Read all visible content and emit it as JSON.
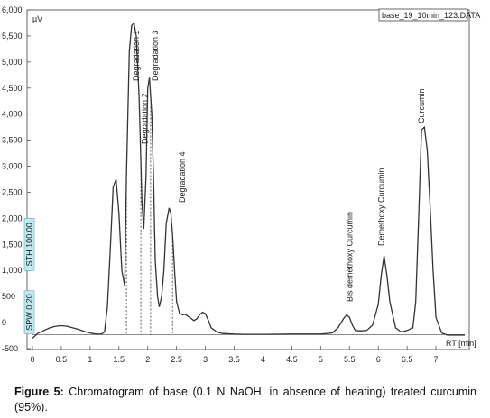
{
  "chart_data": {
    "type": "line",
    "y_unit": "µV",
    "x_unit": "RT [min]",
    "file_label": "base_19_10min_123.DATA",
    "xlim": [
      0,
      7.5
    ],
    "ylim": [
      -500,
      6000
    ],
    "x_ticks": [
      "0",
      "0.5",
      "1",
      "1.5",
      "2",
      "2.5",
      "3",
      "3.5",
      "4",
      "4.5",
      "5",
      "5.5",
      "6",
      "6.5",
      "7"
    ],
    "x_tick_values": [
      0,
      0.5,
      1,
      1.5,
      2,
      2.5,
      3,
      3.5,
      4,
      4.5,
      5,
      5.5,
      6,
      6.5,
      7
    ],
    "y_ticks": [
      "-500",
      "0",
      "500",
      "1,000",
      "1,500",
      "2,000",
      "2,500",
      "3,000",
      "3,500",
      "4,000",
      "4,500",
      "5,000",
      "5,500",
      "6,000"
    ],
    "y_tick_values": [
      -500,
      0,
      500,
      1000,
      1500,
      2000,
      2500,
      3000,
      3500,
      4000,
      4500,
      5000,
      5500,
      6000
    ],
    "baseline": -230,
    "series": [
      {
        "x": [
          0,
          0.1,
          0.2,
          0.3,
          0.4,
          0.5,
          0.6,
          0.7,
          0.8,
          0.9,
          1.0,
          1.1,
          1.2,
          1.25,
          1.3,
          1.35,
          1.4,
          1.45,
          1.5,
          1.55,
          1.6,
          1.63,
          1.68,
          1.72,
          1.76,
          1.8,
          1.85,
          1.9,
          1.93,
          1.97,
          2.0,
          2.03,
          2.07,
          2.1,
          2.13,
          2.17,
          2.2,
          2.24,
          2.28,
          2.32,
          2.37,
          2.4,
          2.43,
          2.47,
          2.5,
          2.55,
          2.6,
          2.65,
          2.7,
          2.75,
          2.8,
          2.85,
          2.9,
          2.95,
          3.0,
          3.05,
          3.1,
          3.2,
          3.3,
          3.5,
          3.7,
          4.0,
          4.5,
          5.0,
          5.2,
          5.3,
          5.4,
          5.45,
          5.5,
          5.55,
          5.6,
          5.7,
          5.8,
          5.9,
          6.0,
          6.05,
          6.1,
          6.15,
          6.2,
          6.3,
          6.4,
          6.5,
          6.6,
          6.65,
          6.7,
          6.75,
          6.8,
          6.85,
          6.9,
          6.95,
          7.0,
          7.1,
          7.2,
          7.3,
          7.4,
          7.5
        ],
        "y": [
          -300,
          -200,
          -150,
          -100,
          -70,
          -60,
          -70,
          -100,
          -130,
          -170,
          -200,
          -220,
          -220,
          -180,
          300,
          1400,
          2600,
          2750,
          2100,
          1000,
          700,
          2800,
          5200,
          5700,
          5750,
          5500,
          4300,
          2300,
          1800,
          2800,
          4500,
          4700,
          4000,
          2800,
          1200,
          500,
          300,
          500,
          1000,
          1900,
          2200,
          2100,
          1700,
          900,
          400,
          180,
          150,
          160,
          120,
          80,
          40,
          70,
          150,
          200,
          170,
          50,
          -100,
          -180,
          -210,
          -220,
          -225,
          -225,
          -220,
          -220,
          -200,
          -100,
          80,
          150,
          100,
          -50,
          -150,
          -160,
          -150,
          -50,
          350,
          900,
          1280,
          900,
          400,
          -100,
          -180,
          -150,
          -100,
          400,
          2000,
          3700,
          3750,
          3300,
          2200,
          1000,
          100,
          -200,
          -240,
          -240,
          -240,
          -240
        ]
      }
    ],
    "peak_labels": [
      {
        "text": "Degradation 1",
        "x": 1.8
      },
      {
        "text": "Degradation 2",
        "x": 1.95
      },
      {
        "text": "Degradation 3",
        "x": 2.13
      },
      {
        "text": "Degradation 4",
        "x": 2.6
      },
      {
        "text": "Bis demethoxy Curcumin",
        "x": 5.5
      },
      {
        "text": "Demethoxy Curcumin",
        "x": 6.05
      },
      {
        "text": "Curcumin",
        "x": 6.75
      }
    ],
    "dashed_markers_x": [
      1.63,
      1.88,
      2.05,
      2.43
    ],
    "side_tags": [
      {
        "text": "STH 100.00",
        "y": 1500
      },
      {
        "text": "SPW 0.20",
        "y": 200
      }
    ]
  },
  "caption": {
    "label": "Figure 5:",
    "text": " Chromatogram of base (0.1 N NaOH, in absence of heating) treated curcumin (95%)."
  }
}
